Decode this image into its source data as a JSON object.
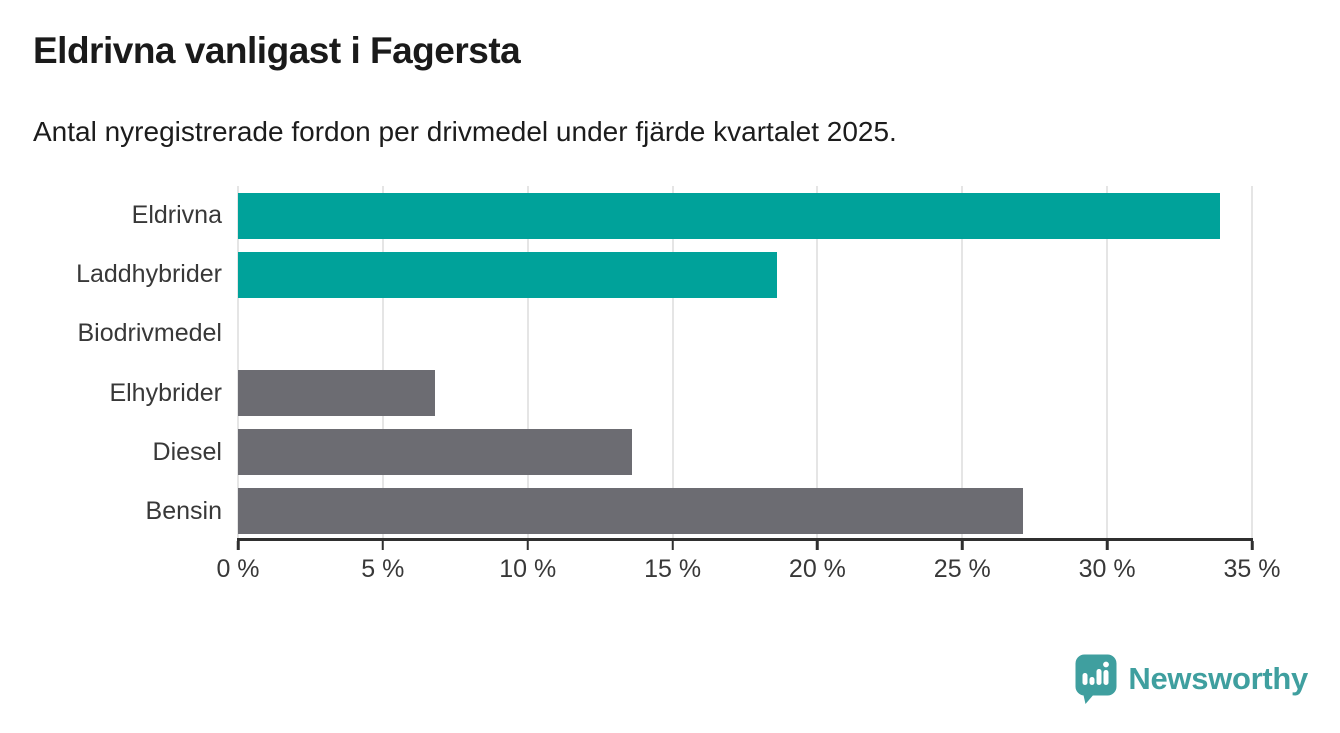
{
  "header": {
    "title": "Eldrivna vanligast i Fagersta",
    "subtitle": "Antal nyregistrerade fordon per drivmedel under fjärde kvartalet 2025."
  },
  "chart_data": {
    "type": "bar",
    "orientation": "horizontal",
    "title": "Eldrivna vanligast i Fagersta",
    "subtitle": "Antal nyregistrerade fordon per drivmedel under fjärde kvartalet 2025.",
    "categories": [
      "Eldrivna",
      "Laddhybrider",
      "Biodrivmedel",
      "Elhybrider",
      "Diesel",
      "Bensin"
    ],
    "values": [
      33.9,
      18.6,
      0,
      6.8,
      13.6,
      27.1
    ],
    "unit": "%",
    "bar_colors": [
      "#00a29a",
      "#00a29a",
      "#6c6c72",
      "#6c6c72",
      "#6c6c72",
      "#6c6c72"
    ],
    "xlim": [
      0,
      35
    ],
    "x_tick_values": [
      0,
      5,
      10,
      15,
      20,
      25,
      30,
      35
    ],
    "x_tick_labels": [
      "0 %",
      "5 %",
      "10 %",
      "15 %",
      "20 %",
      "25 %",
      "30 %",
      "35 %"
    ],
    "grid": "vertical",
    "legend": "none"
  },
  "colors": {
    "highlight_teal": "#00a29a",
    "neutral_gray": "#6c6c72",
    "gridline": "#e5e5e5",
    "axis": "#2f2f2f",
    "text_dark": "#1a1a1a",
    "label_gray": "#383838",
    "brand_teal": "#3f9f9f"
  },
  "footer": {
    "brand": "Newsworthy"
  }
}
